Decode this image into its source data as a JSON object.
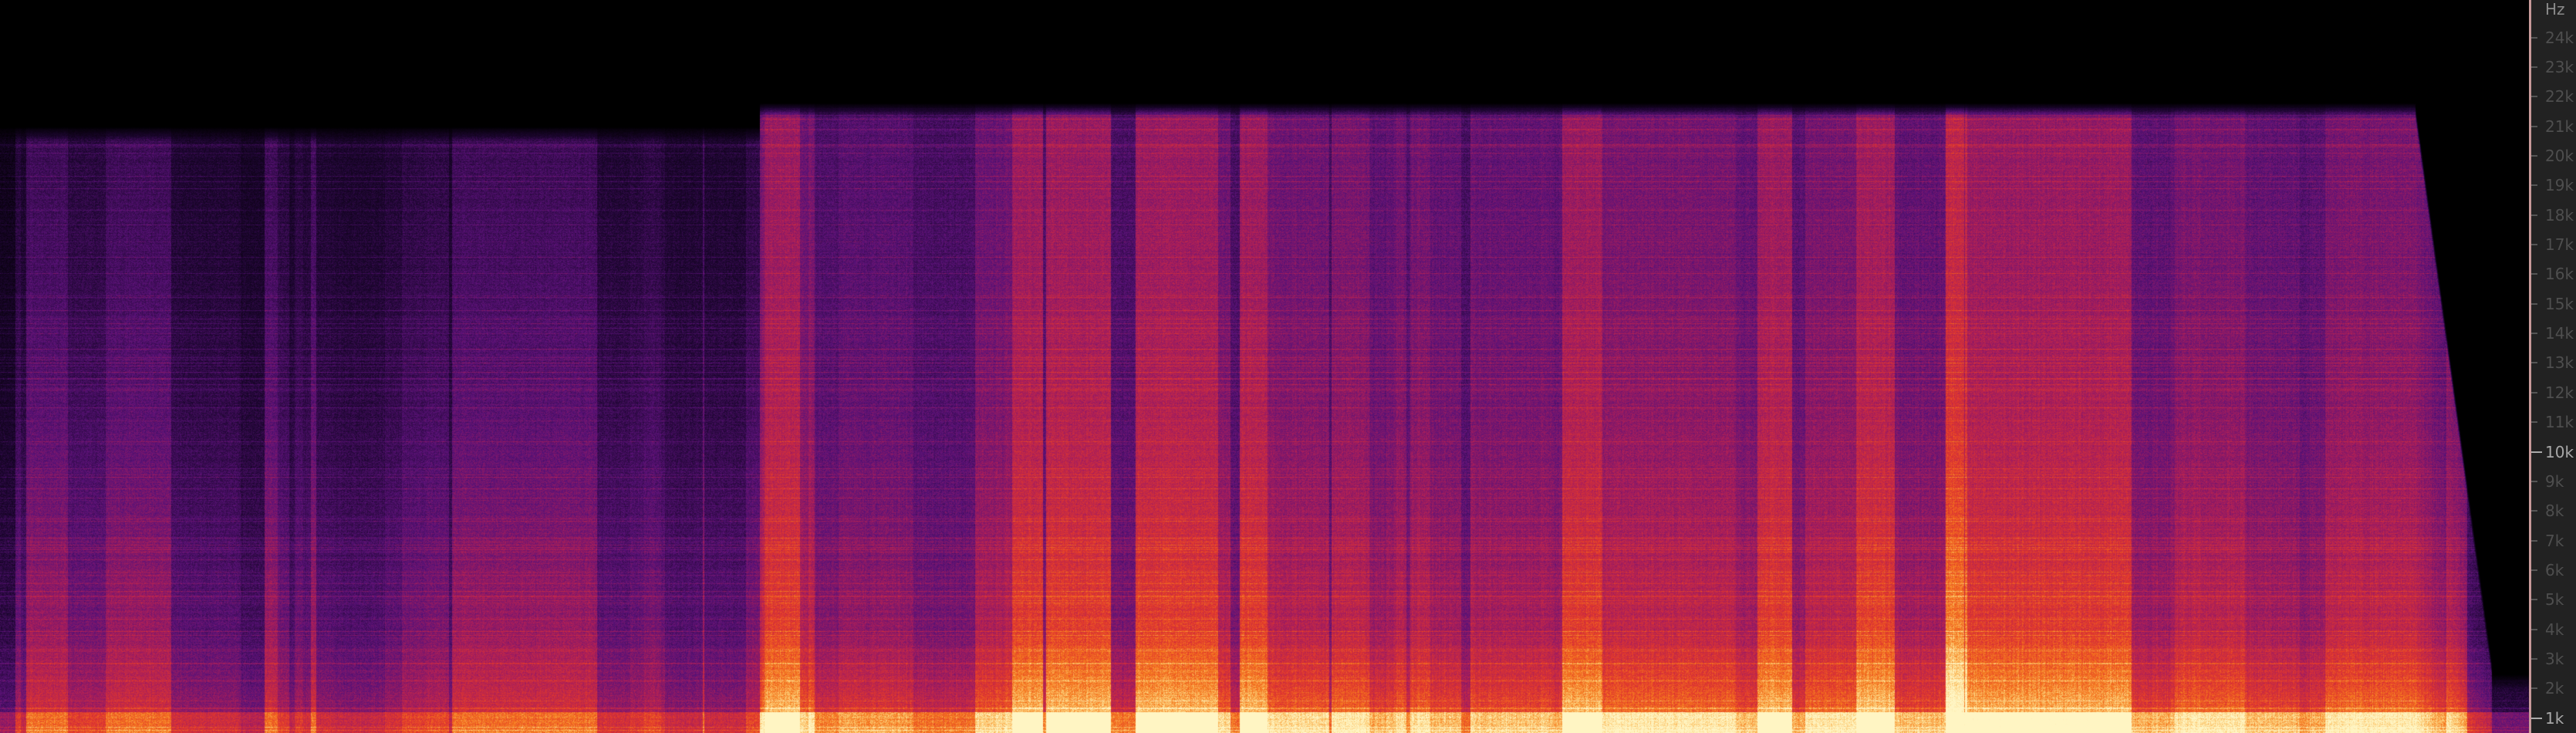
{
  "chart_data": {
    "type": "heatmap",
    "title": "",
    "xlabel": "",
    "ylabel": "Hz",
    "y_unit": "Hz",
    "ylim_khz": [
      0,
      25
    ],
    "y_ticks": [
      "24k",
      "23k",
      "22k",
      "21k",
      "20k",
      "19k",
      "18k",
      "17k",
      "16k",
      "15k",
      "14k",
      "13k",
      "12k",
      "11k",
      "10k",
      "9k",
      "8k",
      "7k",
      "6k",
      "5k",
      "4k",
      "3k",
      "2k",
      "1k"
    ],
    "y_tick_values_khz": [
      24,
      23,
      22,
      21,
      20,
      19,
      18,
      17,
      16,
      15,
      14,
      13,
      12,
      11,
      10,
      9,
      8,
      7,
      6,
      5,
      4,
      3,
      2,
      1
    ],
    "major_ticks": [
      "10k",
      "1k"
    ],
    "colormap": [
      "#000000",
      "#3b0b5a",
      "#7a1a7a",
      "#c0203a",
      "#f06020",
      "#fcd080",
      "#fff4c0"
    ],
    "axis_position": "right",
    "grid": false
  }
}
